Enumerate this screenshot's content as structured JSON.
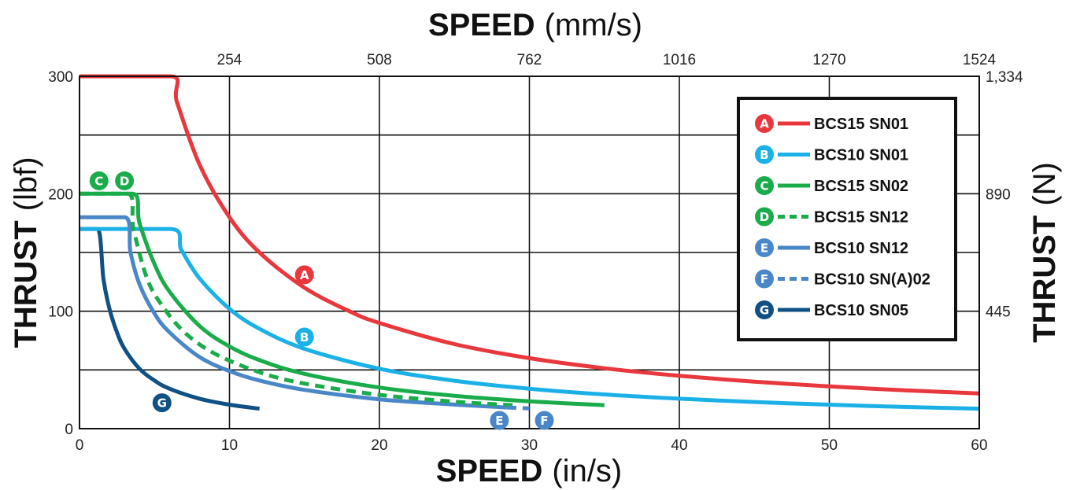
{
  "chart_data": {
    "type": "line",
    "x_axis": {
      "title": "SPEED",
      "unit": "(in/s)",
      "range": [
        0,
        60
      ],
      "ticks": [
        "0",
        "10",
        "20",
        "30",
        "40",
        "50",
        "60"
      ],
      "tick_values": [
        0,
        10,
        20,
        30,
        40,
        50,
        60
      ]
    },
    "x2_axis": {
      "title": "SPEED",
      "unit": "(mm/s)",
      "ticks": [
        "254",
        "508",
        "762",
        "1016",
        "1270",
        "1524"
      ],
      "tick_positions_in_s": [
        10,
        20,
        30,
        40,
        50,
        60
      ]
    },
    "y_axis": {
      "title": "THRUST",
      "unit": "(lbf)",
      "range": [
        0,
        300
      ],
      "ticks": [
        "0",
        "100",
        "200",
        "300"
      ],
      "tick_values": [
        0,
        100,
        200,
        300
      ]
    },
    "y2_axis": {
      "title": "THRUST",
      "unit": "(N)",
      "ticks": [
        "445",
        "890",
        "1,334"
      ],
      "tick_positions_lbf": [
        100,
        200,
        300
      ]
    },
    "grid": true,
    "legend_position": "top-right",
    "series": [
      {
        "id": "A",
        "name": "BCS15 SN01",
        "color": "#e8383d",
        "style": "solid",
        "x": [
          0,
          6,
          6.5,
          8,
          10,
          12,
          15,
          18,
          20,
          25,
          30,
          35,
          40,
          45,
          50,
          55,
          60
        ],
        "y": [
          300,
          300,
          278,
          225,
          180,
          150,
          120,
          100,
          90,
          72,
          60,
          51.4,
          45,
          40,
          36,
          32.7,
          30
        ]
      },
      {
        "id": "B",
        "name": "BCS10 SN01",
        "color": "#1bb1e7",
        "style": "solid",
        "x": [
          0,
          6,
          6.8,
          8,
          10,
          12,
          15,
          20,
          25,
          30,
          35,
          40,
          45,
          50,
          55,
          60
        ],
        "y": [
          170,
          170,
          152,
          128,
          102,
          85,
          68,
          51,
          40.8,
          34,
          29.1,
          25.5,
          22.7,
          20.4,
          18.5,
          17
        ]
      },
      {
        "id": "C",
        "name": "BCS15 SN02",
        "color": "#1aac4b",
        "style": "solid",
        "x": [
          0,
          3.5,
          4,
          5,
          6,
          8,
          10,
          12,
          15,
          20,
          25,
          30,
          35
        ],
        "y": [
          200,
          200,
          175,
          140,
          116.7,
          87.5,
          70,
          58.3,
          46.7,
          35,
          28,
          23.3,
          20
        ]
      },
      {
        "id": "D",
        "name": "BCS15 SN12",
        "color": "#1aac4b",
        "style": "dashed",
        "x": [
          0,
          3.2,
          3.6,
          4.5,
          5.5,
          7,
          9,
          12,
          15,
          20,
          25,
          29
        ],
        "y": [
          200,
          200,
          170,
          128,
          105,
          82,
          64,
          48,
          38.4,
          28.8,
          23,
          19.9
        ]
      },
      {
        "id": "E",
        "name": "BCS10 SN12",
        "color": "#4a87c8",
        "style": "solid",
        "x": [
          0,
          3,
          3.4,
          4,
          5,
          6,
          8,
          10,
          12,
          15,
          20,
          25,
          28.5
        ],
        "y": [
          180,
          180,
          150,
          123,
          98,
          82,
          61,
          49,
          41,
          33,
          25,
          20.5,
          18
        ]
      },
      {
        "id": "F",
        "name": "BCS10 SN(A)02",
        "color": "#4a87c8",
        "style": "dashed",
        "x": [
          28.5,
          30
        ],
        "y": [
          18,
          17.2
        ]
      },
      {
        "id": "G",
        "name": "BCS10 SN05",
        "color": "#0f5184",
        "style": "solid",
        "x": [
          0,
          1.2,
          1.6,
          2,
          2.5,
          3,
          4,
          5,
          6,
          8,
          10,
          12
        ],
        "y": [
          170,
          170,
          127,
          102,
          82,
          68,
          51,
          41,
          34,
          25.5,
          20.4,
          17
        ]
      }
    ],
    "curve_labels": [
      {
        "id": "A",
        "text": "A",
        "color": "#e8383d",
        "x": 15,
        "y": 131
      },
      {
        "id": "B",
        "text": "B",
        "color": "#1bb1e7",
        "x": 15,
        "y": 78
      },
      {
        "id": "C",
        "text": "C",
        "color": "#1aac4b",
        "x": 1.3,
        "y": 211
      },
      {
        "id": "D",
        "text": "D",
        "color": "#1aac4b",
        "x": 3,
        "y": 211
      },
      {
        "id": "E",
        "text": "E",
        "color": "#4a87c8",
        "x": 28,
        "y": 7
      },
      {
        "id": "F",
        "text": "F",
        "color": "#4a87c8",
        "x": 31,
        "y": 7
      },
      {
        "id": "G",
        "text": "G",
        "color": "#0f5184",
        "x": 5.5,
        "y": 22
      }
    ]
  }
}
